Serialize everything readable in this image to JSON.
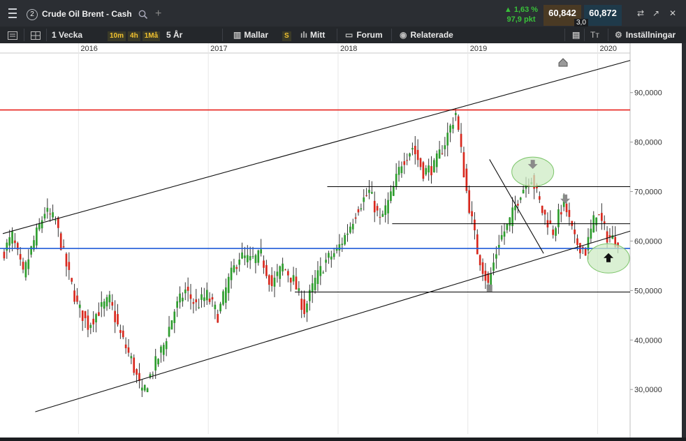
{
  "tabs": {
    "number": "2",
    "title": "Crude Oil Brent - Cash"
  },
  "quote": {
    "change_pct": "1,63 %",
    "change_pts": "97,9 pkt",
    "bid": "60,842",
    "ask": "60,872",
    "spread": "3,0"
  },
  "toolbar": {
    "period": "1 Vecka",
    "intervals": [
      "10m",
      "4h",
      "1Må"
    ],
    "range": "5 År",
    "templates": "Mallar",
    "s_badge": "S",
    "mid": "Mitt",
    "forum": "Forum",
    "related": "Relaterade",
    "settings": "Inställningar"
  },
  "colors": {
    "up": "#2e9d2e",
    "down": "#d8281d",
    "resistance": "#e8211b",
    "support": "#1f5bd8",
    "highlight": "#cdebc4"
  },
  "chart_data": {
    "type": "candlestick",
    "x_tick_labels": [
      "2016",
      "2017",
      "2018",
      "2019",
      "2020"
    ],
    "y_tick_labels": [
      "90,0000",
      "80,0000",
      "70,0000",
      "60,0000",
      "50,0000",
      "40,0000",
      "30,0000"
    ],
    "y_ticks": [
      90,
      80,
      70,
      60,
      50,
      40,
      30
    ],
    "ylim": [
      21,
      98
    ],
    "xlim": [
      "2015-06",
      "2020-04"
    ],
    "horizontal_levels": [
      {
        "value": 86.5,
        "color": "#e8211b"
      },
      {
        "value": 58.5,
        "color": "#1f5bd8"
      },
      {
        "value": 71.0,
        "color": "#000000"
      },
      {
        "value": 63.5,
        "color": "#000000"
      },
      {
        "value": 49.7,
        "color": "#000000"
      }
    ],
    "trend_lines": [
      {
        "from": [
          "2015-06",
          61.5
        ],
        "to": [
          "2020-04",
          96.5
        ]
      },
      {
        "from": [
          "2015-09",
          25.5
        ],
        "to": [
          "2020-04",
          62.0
        ]
      },
      {
        "from": [
          "2019-03",
          76.5
        ],
        "to": [
          "2019-08",
          57.5
        ]
      }
    ],
    "price_path": [
      [
        "2015-06",
        57
      ],
      [
        "2015-07",
        61
      ],
      [
        "2015-08",
        53
      ],
      [
        "2015-09",
        60
      ],
      [
        "2015-10",
        66
      ],
      [
        "2015-11",
        64
      ],
      [
        "2015-12",
        55
      ],
      [
        "2016-01",
        47
      ],
      [
        "2016-02",
        43
      ],
      [
        "2016-03",
        46
      ],
      [
        "2016-04",
        48
      ],
      [
        "2016-05",
        41
      ],
      [
        "2016-06",
        36
      ],
      [
        "2016-07",
        29
      ],
      [
        "2016-08",
        34
      ],
      [
        "2016-09",
        39
      ],
      [
        "2016-10",
        46
      ],
      [
        "2016-11",
        50
      ],
      [
        "2016-12",
        47
      ],
      [
        "2017-01",
        49
      ],
      [
        "2017-02",
        45
      ],
      [
        "2017-03",
        52
      ],
      [
        "2017-04",
        57
      ],
      [
        "2017-05",
        56
      ],
      [
        "2017-06",
        57
      ],
      [
        "2017-07",
        51
      ],
      [
        "2017-08",
        55
      ],
      [
        "2017-09",
        52
      ],
      [
        "2017-10",
        46
      ],
      [
        "2017-11",
        52
      ],
      [
        "2017-12",
        56
      ],
      [
        "2018-01",
        58
      ],
      [
        "2018-02",
        62
      ],
      [
        "2018-03",
        67
      ],
      [
        "2018-04",
        70
      ],
      [
        "2018-05",
        64
      ],
      [
        "2018-06",
        69
      ],
      [
        "2018-07",
        76
      ],
      [
        "2018-08",
        79
      ],
      [
        "2018-09",
        74
      ],
      [
        "2018-10",
        75
      ],
      [
        "2018-11",
        80
      ],
      [
        "2018-12",
        86
      ],
      [
        "2019-01",
        70
      ],
      [
        "2019-02",
        58
      ],
      [
        "2019-03",
        51
      ],
      [
        "2019-04",
        60
      ],
      [
        "2019-05",
        64
      ],
      [
        "2019-06",
        70
      ],
      [
        "2019-07",
        73
      ],
      [
        "2019-08",
        66
      ],
      [
        "2019-09",
        62
      ],
      [
        "2019-10",
        68
      ],
      [
        "2019-11",
        60
      ],
      [
        "2019-12",
        58
      ],
      [
        "2020-01",
        66
      ],
      [
        "2020-02",
        61
      ],
      [
        "2020-03",
        60
      ]
    ],
    "annotations": [
      {
        "shape": "ellipse",
        "at": [
          "2019-07",
          74
        ]
      },
      {
        "shape": "ellipse",
        "at": [
          "2020-02",
          56.5
        ]
      },
      {
        "shape": "arrow-down",
        "at": [
          "2019-07",
          75
        ]
      },
      {
        "shape": "arrow-down",
        "at": [
          "2019-10",
          68
        ]
      },
      {
        "shape": "arrow-up",
        "at": [
          "2020-02",
          57
        ]
      },
      {
        "shape": "marker",
        "at": [
          "2019-03",
          50.5
        ]
      }
    ]
  }
}
